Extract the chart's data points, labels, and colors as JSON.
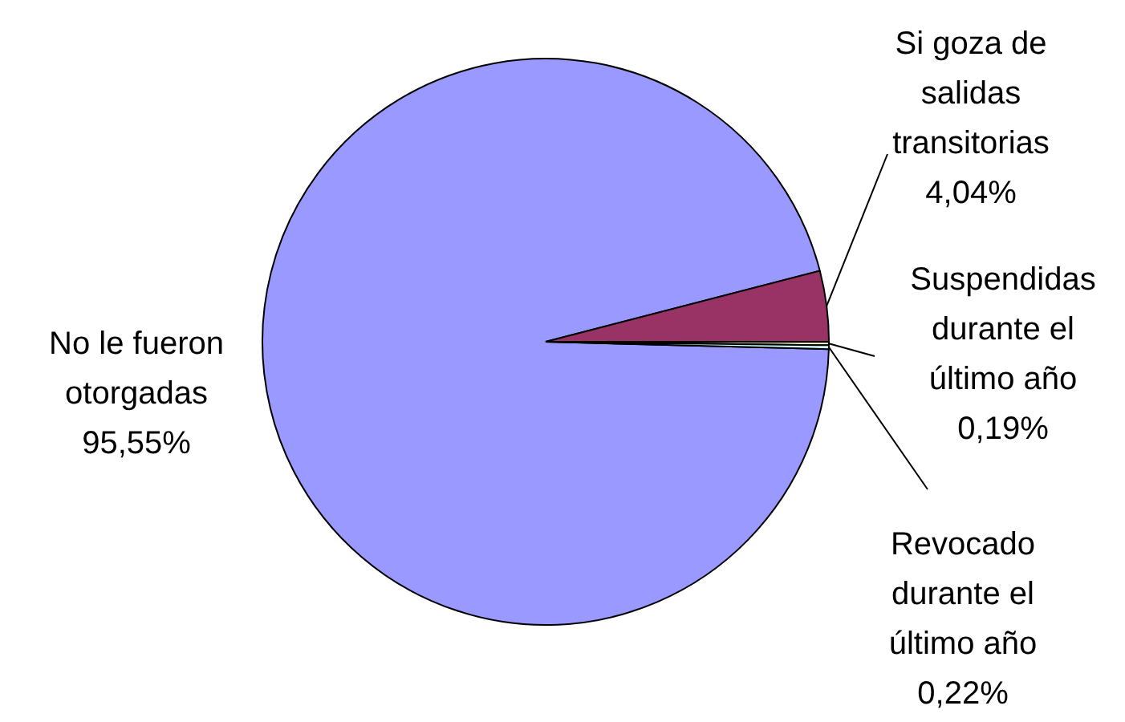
{
  "chart_data": {
    "type": "pie",
    "categories": [
      "No le fueron otorgadas",
      "Si goza de salidas transitorias",
      "Suspendidas durante el último año",
      "Revocado durante el último año"
    ],
    "values": [
      95.55,
      4.04,
      0.19,
      0.22
    ],
    "colors": [
      "#9999ff",
      "#993366",
      "#ffffcc",
      "#ccffff"
    ],
    "value_labels": [
      "95,55%",
      "4,04%",
      "0,19%",
      "0,22%"
    ]
  }
}
